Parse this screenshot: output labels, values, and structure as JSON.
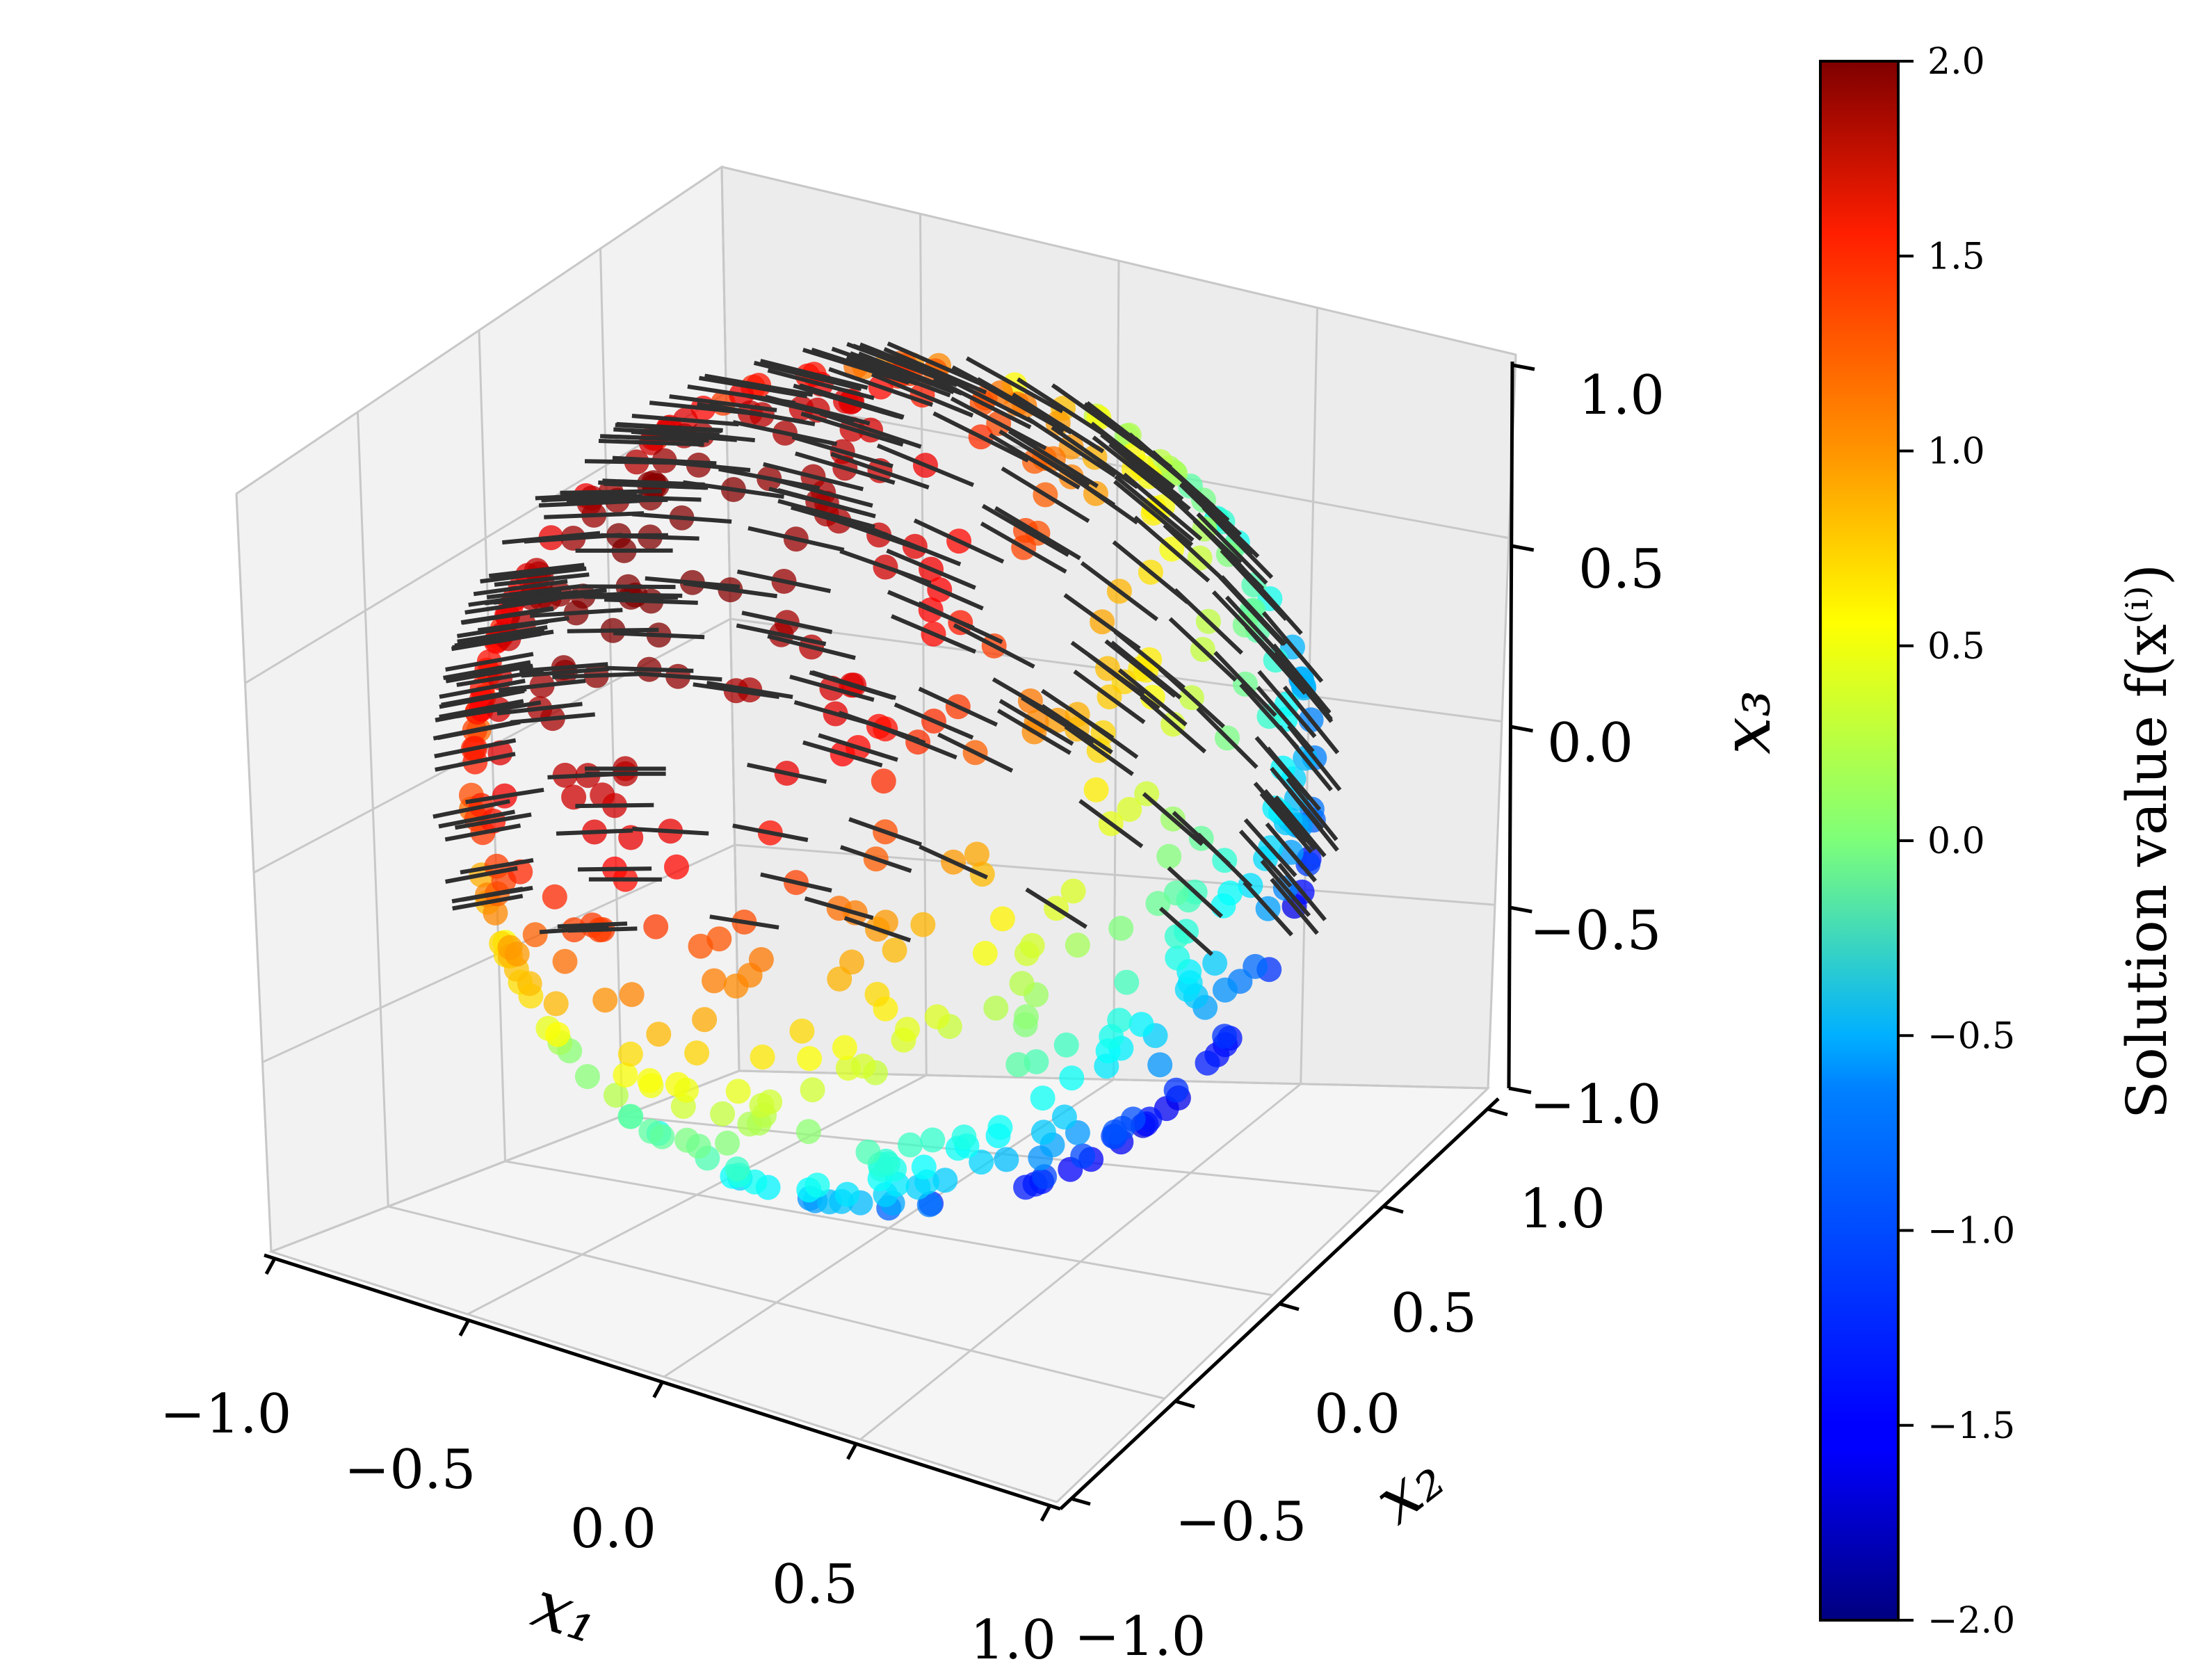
{
  "chart_data": {
    "type": "scatter",
    "projection": "3d",
    "title": "",
    "axes": {
      "x1": {
        "label": "x₁",
        "ticks": [
          "−1.0",
          "−0.5",
          "0.0",
          "0.5",
          "1.0"
        ],
        "lim": [
          -1,
          1
        ]
      },
      "x2": {
        "label": "x₂",
        "ticks": [
          "−1.0",
          "−0.5",
          "0.0",
          "0.5",
          "1.0"
        ],
        "lim": [
          -1,
          1
        ]
      },
      "x3": {
        "label": "x₃",
        "ticks": [
          "−1.0",
          "−0.5",
          "0.0",
          "0.5",
          "1.0"
        ],
        "lim": [
          -1,
          1
        ]
      }
    },
    "grid": true,
    "pane_color": "#f2f2f2",
    "colormap": "jet",
    "colorbar": {
      "label": "Solution value f(x⁽ⁱ⁾)",
      "range": [
        -2,
        2
      ],
      "ticks": [
        "−2.0",
        "−1.5",
        "−1.0",
        "−0.5",
        "0.0",
        "0.5",
        "1.0",
        "1.5",
        "2.0"
      ],
      "tick_values": [
        -2,
        -1.5,
        -1,
        -0.5,
        0,
        0.5,
        1,
        1.5,
        2
      ]
    },
    "points": {
      "description": "points on the unit sphere colored by f(x) = 2·x1 (approx.), front hemisphere visible",
      "color_function": "linear",
      "samples": [
        {
          "x1": -0.95,
          "x2": -0.2,
          "x3": 0.3,
          "f": 1.6
        },
        {
          "x1": -0.7,
          "x2": -0.5,
          "x3": -0.5,
          "f": 0.9
        },
        {
          "x1": -0.3,
          "x2": -0.9,
          "x3": -0.4,
          "f": 0.3
        },
        {
          "x1": 0.0,
          "x2": -0.8,
          "x3": -0.6,
          "f": -0.2
        },
        {
          "x1": 0.4,
          "x2": -0.7,
          "x3": -0.6,
          "f": -0.9
        },
        {
          "x1": 0.8,
          "x2": -0.3,
          "x3": -0.5,
          "f": -1.5
        },
        {
          "x1": 0.9,
          "x2": 0.2,
          "x3": 0.1,
          "f": -1.3
        },
        {
          "x1": 0.5,
          "x2": 0.5,
          "x3": 0.7,
          "f": -0.5
        }
      ]
    },
    "vector_field": {
      "color": "#2f2f2f",
      "description": "short black tangent line segments at each point"
    }
  }
}
